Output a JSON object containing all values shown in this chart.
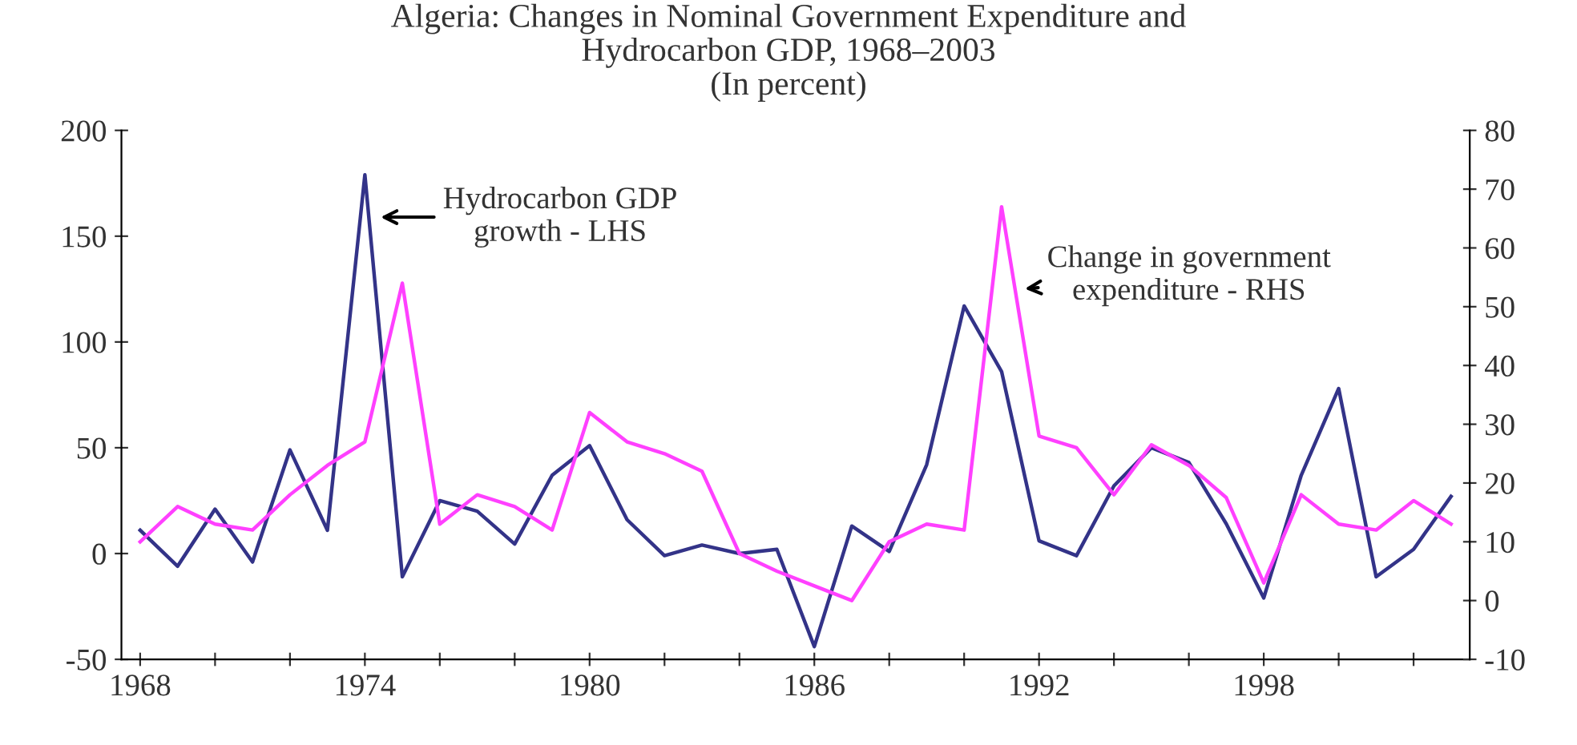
{
  "chart_data": {
    "type": "line",
    "title": "Algeria: Changes in Nominal Government Expenditure and\nHydrocarbon GDP, 1968–2003\n(In percent)",
    "x": [
      1968,
      1969,
      1970,
      1971,
      1972,
      1973,
      1974,
      1975,
      1976,
      1977,
      1978,
      1979,
      1980,
      1981,
      1982,
      1983,
      1984,
      1985,
      1986,
      1987,
      1988,
      1989,
      1990,
      1991,
      1992,
      1993,
      1994,
      1995,
      1996,
      1997,
      1998,
      1999,
      2000,
      2001,
      2002,
      2003
    ],
    "series": [
      {
        "color": "#ff40ff",
        "axis": "y2",
        "values": [
          10,
          16,
          13,
          12,
          18,
          23,
          27,
          54,
          13,
          18,
          16,
          12,
          32,
          27,
          25,
          22,
          8,
          5,
          2.5,
          0,
          10,
          13,
          12,
          67,
          28,
          26,
          18,
          26.5,
          23,
          17.5,
          3,
          18,
          13,
          12,
          17,
          13
        ]
      },
      {
        "color": "#333388",
        "values": [
          11,
          -6,
          21,
          -4,
          49,
          11,
          179,
          -11,
          25,
          20,
          4.5,
          37,
          51,
          16,
          -1,
          4,
          0,
          2,
          -44,
          13,
          1,
          42,
          117,
          86,
          6,
          -1,
          32,
          50,
          43,
          14,
          -21,
          37,
          78,
          -11,
          2,
          27
        ]
      }
    ],
    "xlim": [
      1967.5,
      2003.5
    ],
    "xticks": [
      1968,
      {
        "value": 1970,
        "label": null
      },
      {
        "value": 1972,
        "label": null
      },
      1974,
      {
        "value": 1976,
        "label": null
      },
      {
        "value": 1978,
        "label": null
      },
      1980,
      {
        "value": 1982,
        "label": null
      },
      {
        "value": 1984,
        "label": null
      },
      1986,
      {
        "value": 1988,
        "label": null
      },
      {
        "value": 1990,
        "label": null
      },
      1992,
      {
        "value": 1994,
        "label": null
      },
      {
        "value": 1996,
        "label": null
      },
      1998,
      {
        "value": 2000,
        "label": null
      },
      {
        "value": 2002,
        "label": null
      }
    ],
    "ylim": [
      -50,
      200
    ],
    "yticks": [
      -50,
      0,
      50,
      100,
      150,
      200
    ],
    "y2lim": [
      -10,
      80
    ],
    "y2ticks": [
      -10,
      0,
      10,
      20,
      30,
      40,
      50,
      60,
      70,
      80
    ],
    "grid": false,
    "legend": false,
    "annotations": [
      {
        "text": "Hydrocarbon GDP\ngrowth - LHS",
        "x": 1974.3,
        "y": 159
      },
      {
        "text": "Change in government\nexpenditure - RHS",
        "x": 1991.5,
        "y": 125
      }
    ]
  }
}
